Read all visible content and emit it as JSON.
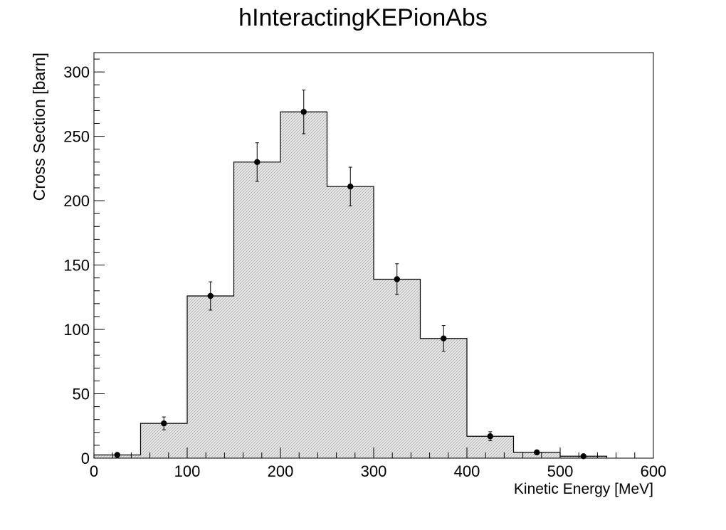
{
  "chart_data": {
    "type": "bar",
    "title": "hInteractingKEPionAbs",
    "xlabel": "Kinetic Energy [MeV]",
    "ylabel": "Cross Section [barn]",
    "xlim": [
      0,
      600
    ],
    "ylim": [
      0,
      315
    ],
    "x_ticks": [
      0,
      100,
      200,
      300,
      400,
      500,
      600
    ],
    "y_ticks": [
      0,
      50,
      100,
      150,
      200,
      250,
      300
    ],
    "grid": false,
    "legend": "none",
    "bins": [
      {
        "low": 0,
        "high": 50,
        "value": 2.5,
        "center": 25,
        "error": 0.5
      },
      {
        "low": 50,
        "high": 100,
        "value": 27,
        "center": 75,
        "error": 5
      },
      {
        "low": 100,
        "high": 150,
        "value": 126,
        "center": 125,
        "error": 11
      },
      {
        "low": 150,
        "high": 200,
        "value": 230,
        "center": 175,
        "error": 15
      },
      {
        "low": 200,
        "high": 250,
        "value": 269,
        "center": 225,
        "error": 17
      },
      {
        "low": 250,
        "high": 300,
        "value": 211,
        "center": 275,
        "error": 15
      },
      {
        "low": 300,
        "high": 350,
        "value": 139,
        "center": 325,
        "error": 12
      },
      {
        "low": 350,
        "high": 400,
        "value": 93,
        "center": 375,
        "error": 10
      },
      {
        "low": 400,
        "high": 450,
        "value": 17,
        "center": 425,
        "error": 3.5
      },
      {
        "low": 450,
        "high": 500,
        "value": 4.5,
        "center": 475,
        "error": 1.5
      },
      {
        "low": 500,
        "high": 550,
        "value": 1.5,
        "center": 525,
        "error": 1
      }
    ],
    "colors": {
      "fill": "#d9d9d9",
      "line": "#000000",
      "marker": "#000000"
    }
  }
}
